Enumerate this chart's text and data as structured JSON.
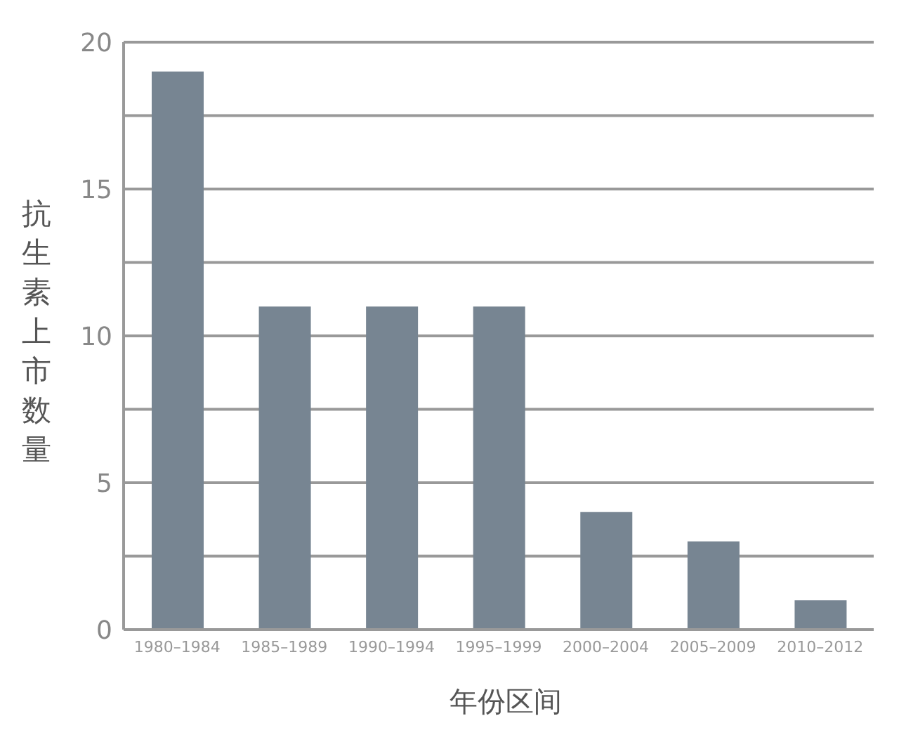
{
  "chart_data": {
    "type": "bar",
    "categories": [
      "1980–1984",
      "1985–1989",
      "1990–1994",
      "1995–1999",
      "2000–2004",
      "2005–2009",
      "2010–2012"
    ],
    "values": [
      19,
      11,
      11,
      11,
      4,
      3,
      1
    ],
    "color": "#778592",
    "xlabel": "年份区间",
    "ylabel": "抗生素上市数量",
    "ylim": [
      0,
      20
    ],
    "yticks": [
      0,
      {
        "value": 2.5,
        "label": null
      },
      5,
      {
        "value": 7.5,
        "label": null
      },
      10,
      {
        "value": 12.5,
        "label": null
      },
      15,
      {
        "value": 17.5,
        "label": null
      },
      20
    ],
    "grid": "y"
  }
}
